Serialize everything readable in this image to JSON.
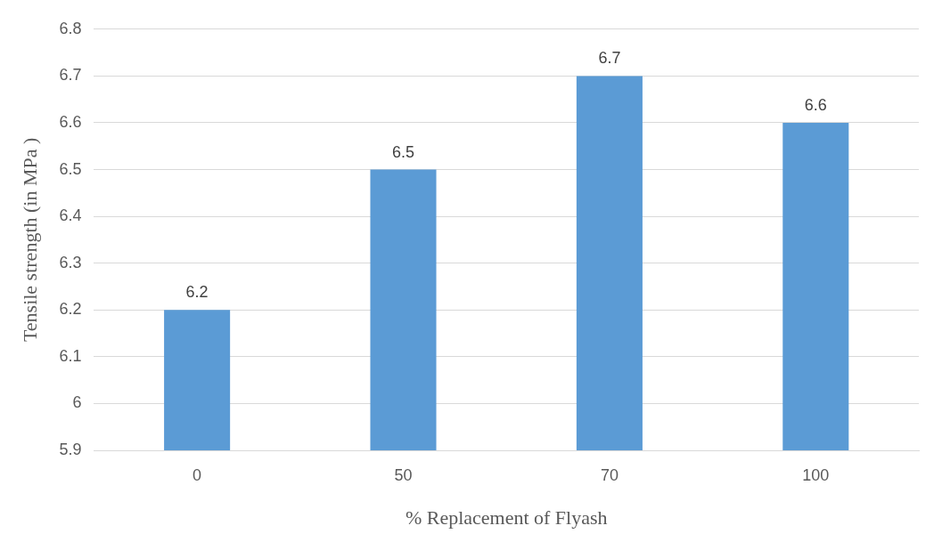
{
  "chart_data": {
    "type": "bar",
    "xlabel": "% Replacement of Flyash",
    "ylabel": "Tensile strength (in MPa )",
    "categories": [
      "0",
      "50",
      "70",
      "100"
    ],
    "values": [
      6.2,
      6.5,
      6.7,
      6.6
    ],
    "color": "#5b9bd5",
    "ylim": [
      5.9,
      6.8
    ],
    "yticks": [
      5.9,
      6,
      6.1,
      6.2,
      6.3,
      6.4,
      6.5,
      6.6,
      6.7,
      6.8
    ],
    "grid": "y",
    "data_labels": true,
    "legend": false
  }
}
